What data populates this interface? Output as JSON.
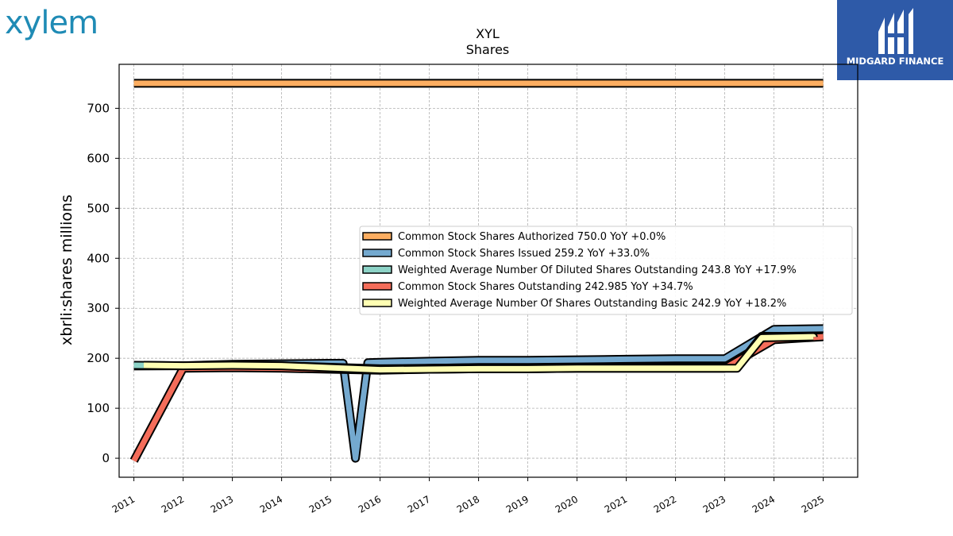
{
  "logos": {
    "left": "xylem",
    "right": "MIDGARD FINANCE"
  },
  "chart_data": {
    "type": "line",
    "title": "XYL",
    "subtitle": "Shares",
    "xlabel": "",
    "ylabel": "xbrli:shares millions",
    "xlim": [
      2010.7,
      2025.7
    ],
    "ylim": [
      -38,
      788
    ],
    "x_ticks": [
      "2011",
      "2012",
      "2013",
      "2014",
      "2015",
      "2016",
      "2017",
      "2018",
      "2019",
      "2020",
      "2021",
      "2022",
      "2023",
      "2024",
      "2025"
    ],
    "y_ticks": [
      0,
      100,
      200,
      300,
      400,
      500,
      600,
      700
    ],
    "grid": true,
    "legend_position": "center-right",
    "series": [
      {
        "name": "Common Stock Shares Authorized  750.0 YoY +0.0%",
        "color": "#fdae61",
        "points": [
          [
            2011,
            750
          ],
          [
            2025,
            750
          ]
        ]
      },
      {
        "name": "Common Stock Shares Issued  259.2 YoY +33.0%",
        "color": "#74a9cf",
        "points": [
          [
            2011,
            184.5
          ],
          [
            2012,
            185
          ],
          [
            2013,
            188
          ],
          [
            2014,
            189
          ],
          [
            2015,
            190
          ],
          [
            2015.25,
            190
          ],
          [
            2015.5,
            0
          ],
          [
            2015.75,
            191
          ],
          [
            2016,
            192
          ],
          [
            2017,
            194
          ],
          [
            2018,
            196
          ],
          [
            2019,
            196
          ],
          [
            2020,
            197
          ],
          [
            2021,
            198
          ],
          [
            2022,
            199
          ],
          [
            2023,
            199
          ],
          [
            2024,
            258
          ],
          [
            2025,
            259.2
          ]
        ]
      },
      {
        "name": "Weighted Average Number Of Diluted Shares Outstanding  243.8 YoY +17.9%",
        "color": "#8dd3c7",
        "points": [
          [
            2011,
            186
          ],
          [
            2012,
            185
          ],
          [
            2013,
            186
          ],
          [
            2014,
            185
          ],
          [
            2015,
            182
          ],
          [
            2016,
            179
          ],
          [
            2017,
            180
          ],
          [
            2018,
            181
          ],
          [
            2019,
            181
          ],
          [
            2020,
            182
          ],
          [
            2021,
            182
          ],
          [
            2022,
            182
          ],
          [
            2023.25,
            182
          ],
          [
            2023.75,
            244
          ],
          [
            2025,
            243.8
          ]
        ]
      },
      {
        "name": "Common Stock Shares Outstanding  242.985 YoY +34.7%",
        "color": "#f46d5a",
        "points": [
          [
            2011,
            -5
          ],
          [
            2012,
            180
          ],
          [
            2013,
            181
          ],
          [
            2014,
            180
          ],
          [
            2015,
            178
          ],
          [
            2016,
            176
          ],
          [
            2017,
            178
          ],
          [
            2018,
            179
          ],
          [
            2019,
            179
          ],
          [
            2020,
            180
          ],
          [
            2021,
            180
          ],
          [
            2022,
            180
          ],
          [
            2023,
            180
          ],
          [
            2024,
            237
          ],
          [
            2025,
            242.985
          ]
        ]
      },
      {
        "name": "Weighted Average Number Of Shares Outstanding Basic  242.9 YoY +18.2%",
        "color": "#ffffb3",
        "points": [
          [
            2011.2,
            186
          ],
          [
            2012,
            185
          ],
          [
            2013,
            186
          ],
          [
            2014,
            185
          ],
          [
            2015,
            181
          ],
          [
            2016,
            177
          ],
          [
            2017,
            178
          ],
          [
            2018,
            179
          ],
          [
            2019,
            179
          ],
          [
            2020,
            180
          ],
          [
            2021,
            180
          ],
          [
            2022,
            180
          ],
          [
            2023.25,
            180
          ],
          [
            2023.75,
            241
          ],
          [
            2024.8,
            243
          ],
          [
            2024.8,
            242.9
          ]
        ]
      }
    ]
  }
}
